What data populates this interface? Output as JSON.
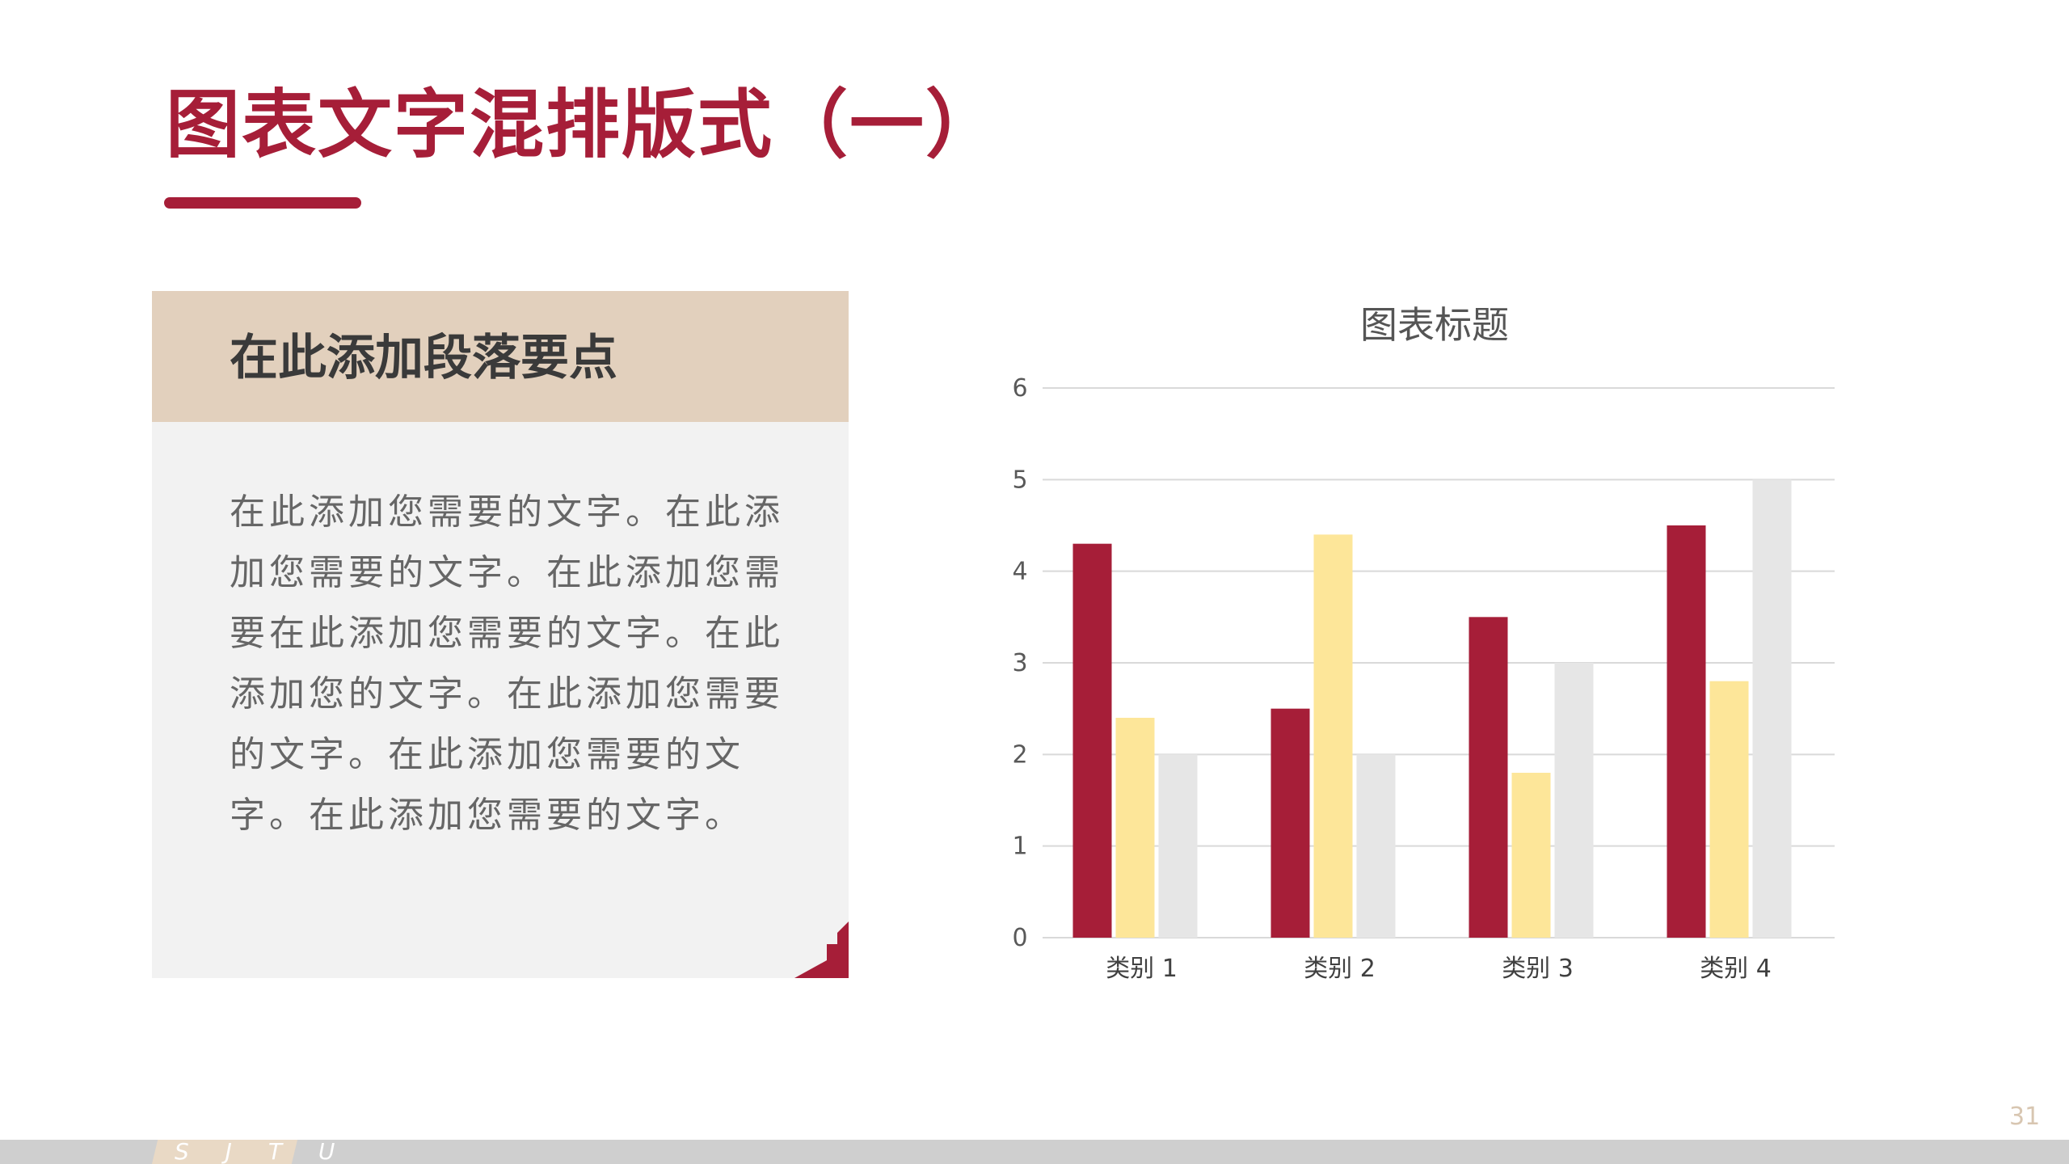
{
  "slide": {
    "title": "图表文字混排版式（一）",
    "page_number": "31",
    "footer_brand": "S J T U",
    "colors": {
      "accent": "#a61e38",
      "header_beige": "#e2d0bd",
      "card_gray": "#f2f2f2"
    }
  },
  "card": {
    "heading": "在此添加段落要点",
    "body": "在此添加您需要的文字。在此添加您需要的文字。在此添加您需要在此添加您需要的文字。在此添加您的文字。在此添加您需要的文字。在此添加您需要的文字。在此添加您需要的文字。"
  },
  "chart_data": {
    "type": "bar",
    "title": "图表标题",
    "categories": [
      "类别 1",
      "类别 2",
      "类别 3",
      "类别 4"
    ],
    "series": [
      {
        "values": [
          4.3,
          2.5,
          3.5,
          4.5
        ],
        "color": "#a61e38"
      },
      {
        "values": [
          2.4,
          4.4,
          1.8,
          2.8
        ],
        "color": "#fde699"
      },
      {
        "values": [
          2.0,
          2.0,
          3.0,
          5.0
        ],
        "color": "#e6e6e6"
      }
    ],
    "ylim": [
      0,
      6
    ],
    "yticks": [
      "0",
      "1",
      "2",
      "3",
      "4",
      "5",
      "6"
    ],
    "grid": true,
    "legend": "none"
  }
}
